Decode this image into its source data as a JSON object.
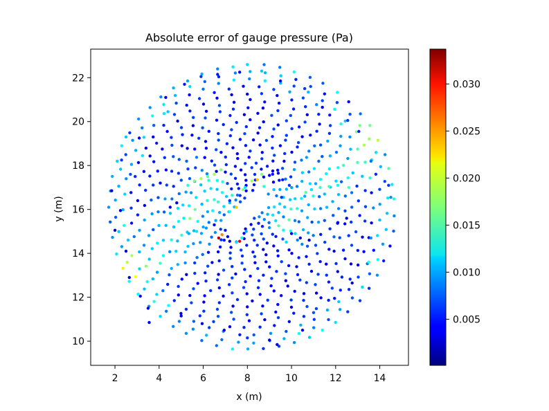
{
  "chart_data": {
    "type": "scatter",
    "title": "Absolute error of gauge pressure (Pa)",
    "xlabel": "x (m)",
    "ylabel": "y (m)",
    "xlim": [
      0.9,
      15.3
    ],
    "ylim": [
      8.9,
      23.3
    ],
    "x_ticks": [
      2,
      4,
      6,
      8,
      10,
      12,
      14
    ],
    "y_ticks": [
      10,
      12,
      14,
      16,
      18,
      20,
      22
    ],
    "grid": false,
    "colormap": "jet",
    "colorbar": {
      "range": [
        0.0001,
        0.0337
      ],
      "ticks": [
        0.005,
        0.01,
        0.015,
        0.02,
        0.025,
        0.03
      ],
      "tick_labels": [
        "0.005",
        "0.010",
        "0.015",
        "0.020",
        "0.025",
        "0.030"
      ]
    },
    "point_cloud": {
      "description": "Radial grid of sampling points around a rectangular obstacle",
      "center": [
        8.2,
        16.1
      ],
      "obstacle": {
        "center": [
          8.1,
          16.05
        ],
        "length": 3.0,
        "width": 0.8,
        "angle_deg": 45
      },
      "outer_radius": 6.5
    },
    "points": [
      [
        1.85,
        16.85,
        0.003
      ],
      [
        2.0,
        15.05,
        0.002
      ],
      [
        2.25,
        15.95,
        0.003
      ],
      [
        2.3,
        18.25,
        0.006
      ],
      [
        2.5,
        19.3,
        0.011
      ],
      [
        2.5,
        14.1,
        0.004
      ],
      [
        2.65,
        12.9,
        0.003
      ],
      [
        2.7,
        17.6,
        0.007
      ],
      [
        3.1,
        19.25,
        0.004
      ],
      [
        3.15,
        12.05,
        0.004
      ],
      [
        3.25,
        18.45,
        0.012
      ],
      [
        3.5,
        11.5,
        0.003
      ],
      [
        3.55,
        10.85,
        0.004
      ],
      [
        4.4,
        20.45,
        0.011
      ],
      [
        4.3,
        21.1,
        0.004
      ],
      [
        5.15,
        21.7,
        0.005
      ],
      [
        5.9,
        22.05,
        0.006
      ],
      [
        6.65,
        22.15,
        0.005
      ],
      [
        7.65,
        22.25,
        0.004
      ],
      [
        8.65,
        22.3,
        0.011
      ],
      [
        9.5,
        21.85,
        0.004
      ],
      [
        10.6,
        21.5,
        0.006
      ],
      [
        11.4,
        20.65,
        0.004
      ],
      [
        12.55,
        20.05,
        0.006
      ],
      [
        13.05,
        19.55,
        0.005
      ],
      [
        13.6,
        18.2,
        0.008
      ],
      [
        14.4,
        17.1,
        0.006
      ],
      [
        14.5,
        16.55,
        0.009
      ],
      [
        13.6,
        14.7,
        0.009
      ],
      [
        13.5,
        13.6,
        0.014
      ],
      [
        12.75,
        12.65,
        0.003
      ],
      [
        11.95,
        11.95,
        0.005
      ],
      [
        11.0,
        11.3,
        0.007
      ],
      [
        10.5,
        10.5,
        0.004
      ],
      [
        9.0,
        10.05,
        0.003
      ],
      [
        8.0,
        10.15,
        0.006
      ],
      [
        6.95,
        10.5,
        0.003
      ],
      [
        5.95,
        10.8,
        0.004
      ],
      [
        5.0,
        11.15,
        0.003
      ],
      [
        9.35,
        9.85,
        0.004
      ],
      [
        7.2,
        15.9,
        0.013
      ],
      [
        7.5,
        16.1,
        0.023
      ],
      [
        7.8,
        16.9,
        0.017
      ],
      [
        7.9,
        17.0,
        0.012
      ],
      [
        8.2,
        17.3,
        0.018
      ],
      [
        8.45,
        17.35,
        0.023
      ],
      [
        8.65,
        17.6,
        0.017
      ],
      [
        8.75,
        17.05,
        0.014
      ],
      [
        9.0,
        17.55,
        0.004
      ],
      [
        9.15,
        17.75,
        0.003
      ],
      [
        9.4,
        17.65,
        0.004
      ],
      [
        9.6,
        17.35,
        0.005
      ],
      [
        9.9,
        17.1,
        0.006
      ],
      [
        7.0,
        15.05,
        0.005
      ],
      [
        6.85,
        14.85,
        0.025
      ],
      [
        6.7,
        14.7,
        0.032
      ],
      [
        6.95,
        14.6,
        0.005
      ],
      [
        7.2,
        14.55,
        0.003
      ],
      [
        7.5,
        14.5,
        0.012
      ],
      [
        7.65,
        14.55,
        0.03
      ],
      [
        7.75,
        14.7,
        0.013
      ],
      [
        7.95,
        15.0,
        0.01
      ],
      [
        6.5,
        15.3,
        0.004
      ],
      [
        7.2,
        16.4,
        0.006
      ],
      [
        7.55,
        16.65,
        0.008
      ],
      [
        8.95,
        16.7,
        0.009
      ],
      [
        9.2,
        16.9,
        0.011
      ],
      [
        9.55,
        16.55,
        0.006
      ],
      [
        6.2,
        17.5,
        0.016
      ],
      [
        6.5,
        17.6,
        0.018
      ],
      [
        6.8,
        17.8,
        0.017
      ],
      [
        5.9,
        17.4,
        0.018
      ],
      [
        5.6,
        17.3,
        0.017
      ],
      [
        5.3,
        17.1,
        0.014
      ],
      [
        10.6,
        16.6,
        0.01
      ],
      [
        10.9,
        16.9,
        0.012
      ],
      [
        11.3,
        17.0,
        0.014
      ],
      [
        11.7,
        17.05,
        0.015
      ],
      [
        12.1,
        17.1,
        0.013
      ],
      [
        12.6,
        17.0,
        0.015
      ],
      [
        6.0,
        15.2,
        0.01
      ],
      [
        5.7,
        15.0,
        0.012
      ],
      [
        5.35,
        14.9,
        0.01
      ],
      [
        10.0,
        14.9,
        0.004
      ],
      [
        10.4,
        14.7,
        0.003
      ],
      [
        10.8,
        14.6,
        0.003
      ],
      [
        4.5,
        16.1,
        0.004
      ],
      [
        4.8,
        16.3,
        0.003
      ],
      [
        12.1,
        15.4,
        0.004
      ],
      [
        12.5,
        15.6,
        0.003
      ]
    ]
  }
}
